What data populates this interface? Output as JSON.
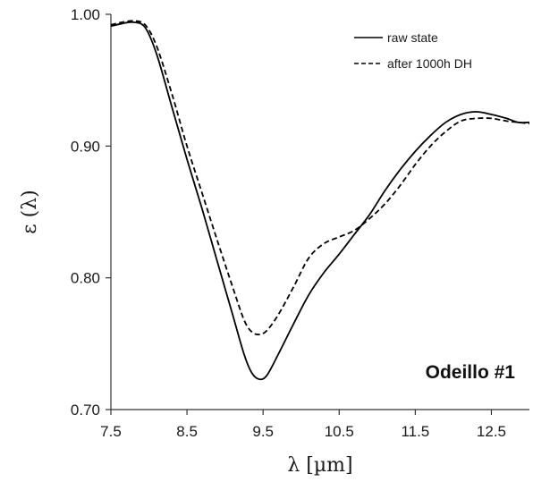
{
  "chart_data": {
    "type": "line",
    "title": "",
    "xlabel": "λ [µm]",
    "ylabel": "ε (λ)",
    "xlim": [
      7.5,
      13.0
    ],
    "ylim": [
      0.7,
      1.0
    ],
    "x_ticks": [
      7.5,
      8.5,
      9.5,
      10.5,
      11.5,
      12.5
    ],
    "x_tick_labels": [
      "7.5",
      "8.5",
      "9.5",
      "10.5",
      "11.5",
      "12.5"
    ],
    "y_ticks": [
      0.7,
      0.8,
      0.9,
      1.0
    ],
    "y_tick_labels": [
      "0.70",
      "0.80",
      "0.90",
      "1.00"
    ],
    "grid": false,
    "legend_position": "top-right",
    "annotation": "Odeillo #1",
    "series": [
      {
        "name": "raw state",
        "style": "solid",
        "color": "#000000",
        "points": [
          [
            7.5,
            0.991
          ],
          [
            7.65,
            0.993
          ],
          [
            7.8,
            0.994
          ],
          [
            7.95,
            0.99
          ],
          [
            8.1,
            0.97
          ],
          [
            8.3,
            0.93
          ],
          [
            8.5,
            0.89
          ],
          [
            8.7,
            0.852
          ],
          [
            8.9,
            0.812
          ],
          [
            9.1,
            0.772
          ],
          [
            9.25,
            0.742
          ],
          [
            9.35,
            0.728
          ],
          [
            9.45,
            0.723
          ],
          [
            9.55,
            0.726
          ],
          [
            9.7,
            0.742
          ],
          [
            9.9,
            0.765
          ],
          [
            10.1,
            0.787
          ],
          [
            10.3,
            0.804
          ],
          [
            10.5,
            0.818
          ],
          [
            10.7,
            0.833
          ],
          [
            10.9,
            0.848
          ],
          [
            11.1,
            0.866
          ],
          [
            11.3,
            0.882
          ],
          [
            11.5,
            0.896
          ],
          [
            11.7,
            0.908
          ],
          [
            11.9,
            0.918
          ],
          [
            12.1,
            0.924
          ],
          [
            12.3,
            0.926
          ],
          [
            12.5,
            0.924
          ],
          [
            12.7,
            0.921
          ],
          [
            12.85,
            0.918
          ],
          [
            13.0,
            0.918
          ]
        ]
      },
      {
        "name": "after 1000h DH",
        "style": "dashed",
        "color": "#000000",
        "points": [
          [
            7.5,
            0.992
          ],
          [
            7.65,
            0.994
          ],
          [
            7.8,
            0.995
          ],
          [
            7.95,
            0.992
          ],
          [
            8.1,
            0.976
          ],
          [
            8.3,
            0.94
          ],
          [
            8.5,
            0.9
          ],
          [
            8.7,
            0.864
          ],
          [
            8.9,
            0.828
          ],
          [
            9.1,
            0.793
          ],
          [
            9.25,
            0.768
          ],
          [
            9.35,
            0.759
          ],
          [
            9.45,
            0.757
          ],
          [
            9.55,
            0.76
          ],
          [
            9.7,
            0.772
          ],
          [
            9.9,
            0.793
          ],
          [
            10.1,
            0.815
          ],
          [
            10.3,
            0.826
          ],
          [
            10.5,
            0.831
          ],
          [
            10.7,
            0.836
          ],
          [
            10.9,
            0.845
          ],
          [
            11.1,
            0.856
          ],
          [
            11.3,
            0.87
          ],
          [
            11.5,
            0.886
          ],
          [
            11.7,
            0.9
          ],
          [
            11.9,
            0.911
          ],
          [
            12.1,
            0.919
          ],
          [
            12.3,
            0.921
          ],
          [
            12.5,
            0.921
          ],
          [
            12.7,
            0.919
          ],
          [
            12.85,
            0.918
          ],
          [
            13.0,
            0.917
          ]
        ]
      }
    ]
  }
}
